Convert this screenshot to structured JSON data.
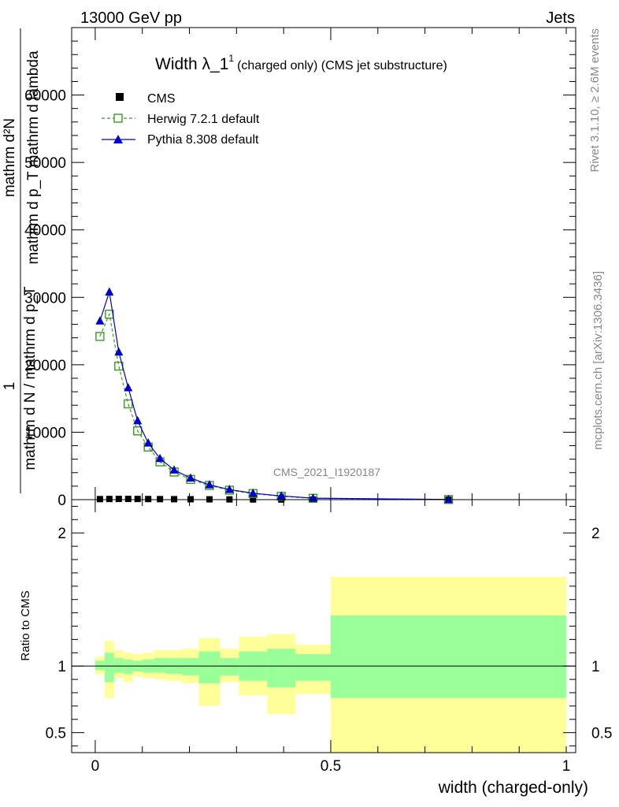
{
  "header": {
    "left": "13000 GeV pp",
    "right": "Jets"
  },
  "side_labels": {
    "rivet": "Rivet 3.1.10, ≥ 2.6M events",
    "mcplots": "mcplots.cern.ch [arXiv:1306.3436]"
  },
  "chart_data": [
    {
      "type": "line",
      "title_main": "Width λ_1",
      "title_sup": "1",
      "title_rest": "(charged only) (CMS jet substructure)",
      "watermark": "CMS_2021_I1920187",
      "ylabel_top": "mathrm d²N",
      "ylabel_top2": "mathrm d p_T mathrm d lambda",
      "ylabel_numer": "1",
      "ylabel_denom": "mathrm d N / mathrm d p_T",
      "xlim": [
        -0.05,
        1.02
      ],
      "ylim": [
        0,
        70000
      ],
      "yticks": [
        0,
        10000,
        20000,
        30000,
        40000,
        50000,
        60000
      ],
      "ytick_labels": [
        "0",
        "10000",
        "20000",
        "30000",
        "40000",
        "50000",
        "60000"
      ],
      "legend_position": "top-left",
      "series": [
        {
          "name": "CMS",
          "color": "#000000",
          "marker": "square-filled",
          "x": [
            0.01,
            0.03,
            0.05,
            0.07,
            0.09,
            0.1125,
            0.1375,
            0.1675,
            0.2025,
            0.2425,
            0.285,
            0.335,
            0.395,
            0.4625,
            0.75
          ],
          "y": [
            80,
            100,
            110,
            110,
            100,
            90,
            80,
            70,
            60,
            50,
            40,
            30,
            20,
            10,
            5
          ]
        },
        {
          "name": "Herwig 7.2.1 default",
          "color": "#3a9a1a",
          "marker": "square-open",
          "x": [
            0.01,
            0.03,
            0.05,
            0.07,
            0.09,
            0.1125,
            0.1375,
            0.1675,
            0.2025,
            0.2425,
            0.285,
            0.335,
            0.395,
            0.4625,
            0.75
          ],
          "y": [
            24200,
            27500,
            19800,
            14200,
            10200,
            7800,
            5600,
            4100,
            3000,
            2100,
            1400,
            900,
            500,
            200,
            20
          ]
        },
        {
          "name": "Pythia 8.308 default",
          "color": "#0000cc",
          "marker": "triangle-filled",
          "x": [
            0.01,
            0.03,
            0.05,
            0.07,
            0.09,
            0.1125,
            0.1375,
            0.1675,
            0.2025,
            0.2425,
            0.285,
            0.335,
            0.395,
            0.4625,
            0.75
          ],
          "y": [
            26500,
            30800,
            21900,
            16600,
            11700,
            8400,
            6100,
            4400,
            3200,
            2200,
            1500,
            950,
            550,
            220,
            25
          ]
        }
      ]
    },
    {
      "type": "area",
      "ylabel": "Ratio to CMS",
      "xlabel": "width (charged-only)",
      "xlim": [
        -0.05,
        1.02
      ],
      "ylim": [
        0.35,
        2.25
      ],
      "yticks": [
        0.5,
        1,
        2
      ],
      "ytick_labels": [
        "0.5",
        "1",
        "2"
      ],
      "xticks": [
        0,
        0.5,
        1
      ],
      "xtick_labels": [
        "0",
        "0.5",
        "1"
      ],
      "reference_line": 1,
      "band_colors": {
        "outer": "#ffff99",
        "inner": "#99ff99"
      },
      "bins": [
        {
          "xlo": 0.0,
          "xhi": 0.02,
          "outer": [
            0.94,
            1.07
          ],
          "inner": [
            0.97,
            1.04
          ]
        },
        {
          "xlo": 0.02,
          "xhi": 0.04,
          "outer": [
            0.76,
            1.19
          ],
          "inner": [
            0.88,
            1.1
          ]
        },
        {
          "xlo": 0.04,
          "xhi": 0.06,
          "outer": [
            0.91,
            1.12
          ],
          "inner": [
            0.95,
            1.06
          ]
        },
        {
          "xlo": 0.06,
          "xhi": 0.08,
          "outer": [
            0.88,
            1.1
          ],
          "inner": [
            0.94,
            1.05
          ]
        },
        {
          "xlo": 0.08,
          "xhi": 0.1,
          "outer": [
            0.92,
            1.09
          ],
          "inner": [
            0.96,
            1.04
          ]
        },
        {
          "xlo": 0.1,
          "xhi": 0.125,
          "outer": [
            0.91,
            1.1
          ],
          "inner": [
            0.95,
            1.05
          ]
        },
        {
          "xlo": 0.125,
          "xhi": 0.15,
          "outer": [
            0.9,
            1.12
          ],
          "inner": [
            0.95,
            1.06
          ]
        },
        {
          "xlo": 0.15,
          "xhi": 0.185,
          "outer": [
            0.89,
            1.12
          ],
          "inner": [
            0.94,
            1.06
          ]
        },
        {
          "xlo": 0.185,
          "xhi": 0.22,
          "outer": [
            0.87,
            1.13
          ],
          "inner": [
            0.93,
            1.06
          ]
        },
        {
          "xlo": 0.22,
          "xhi": 0.265,
          "outer": [
            0.7,
            1.21
          ],
          "inner": [
            0.87,
            1.11
          ]
        },
        {
          "xlo": 0.265,
          "xhi": 0.305,
          "outer": [
            0.88,
            1.13
          ],
          "inner": [
            0.93,
            1.06
          ]
        },
        {
          "xlo": 0.305,
          "xhi": 0.365,
          "outer": [
            0.78,
            1.22
          ],
          "inner": [
            0.89,
            1.11
          ]
        },
        {
          "xlo": 0.365,
          "xhi": 0.425,
          "outer": [
            0.64,
            1.24
          ],
          "inner": [
            0.84,
            1.13
          ]
        },
        {
          "xlo": 0.425,
          "xhi": 0.5,
          "outer": [
            0.79,
            1.16
          ],
          "inner": [
            0.89,
            1.09
          ]
        },
        {
          "xlo": 0.5,
          "xhi": 1.0,
          "outer": [
            0.35,
            1.67
          ],
          "inner": [
            0.76,
            1.38
          ]
        }
      ]
    }
  ]
}
